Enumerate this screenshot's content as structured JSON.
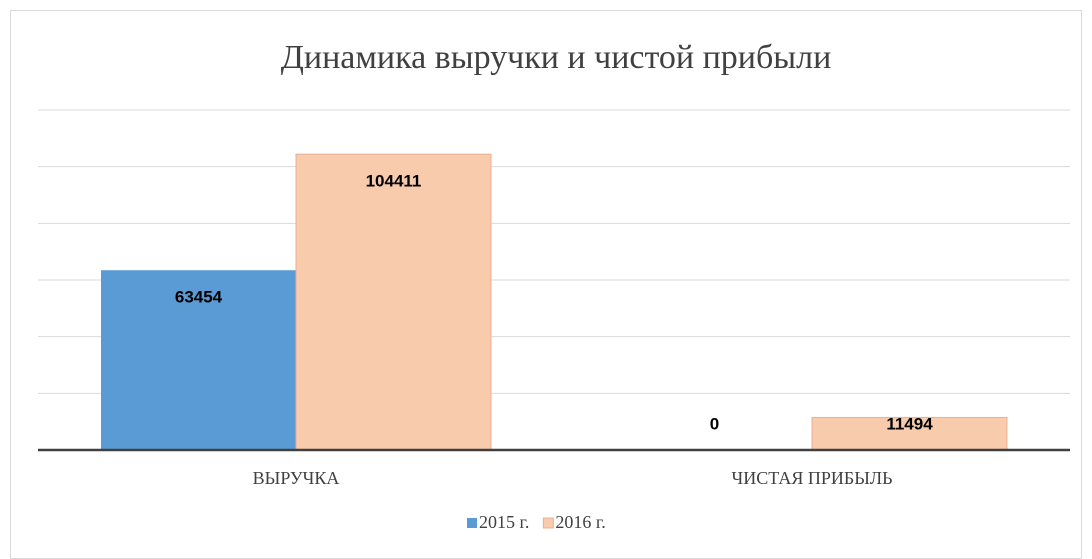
{
  "chart_data": {
    "type": "bar",
    "title": "Динамика выручки и чистой прибыли",
    "categories": [
      "ВЫРУЧКА",
      "ЧИСТАЯ ПРИБЫЛЬ"
    ],
    "series": [
      {
        "name": "2015 г.",
        "color": "#5b9bd5",
        "values": [
          63454,
          0
        ]
      },
      {
        "name": "2016 г.",
        "color": "#f8cbad",
        "values": [
          104411,
          11494
        ]
      }
    ],
    "ylim": [
      0,
      120000
    ],
    "yticks": [
      0,
      20000,
      40000,
      60000,
      80000,
      100000,
      120000
    ],
    "grid": true,
    "legend": "bottom"
  }
}
